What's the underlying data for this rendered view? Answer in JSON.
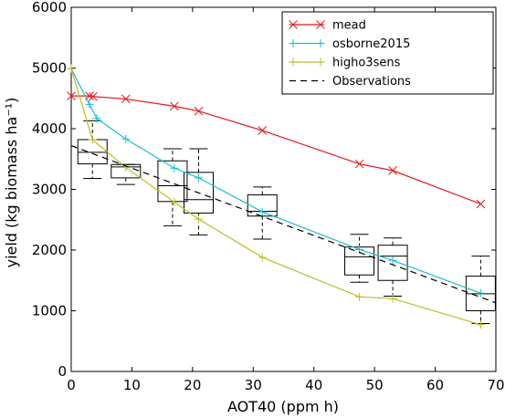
{
  "chart_data": {
    "type": "line",
    "xlabel": "AOT40 (ppm h)",
    "ylabel": "yield (kg biomass ha⁻¹)",
    "xlim": [
      0,
      70
    ],
    "ylim": [
      0,
      6000
    ],
    "xticks": [
      0,
      10,
      20,
      30,
      40,
      50,
      60,
      70
    ],
    "yticks": [
      0,
      1000,
      2000,
      3000,
      4000,
      5000,
      6000
    ],
    "grid": false,
    "legend_position": "top-right",
    "series": [
      {
        "name": "mead",
        "color": "#e41a1c",
        "marker": "x",
        "style": "solid",
        "x": [
          0,
          3,
          3.6,
          9,
          17,
          21,
          31.5,
          47.5,
          53,
          67.5
        ],
        "y": [
          4540,
          4540,
          4530,
          4490,
          4370,
          4290,
          3970,
          3420,
          3310,
          2760
        ]
      },
      {
        "name": "osborne2015",
        "color": "#17becf",
        "marker": "+",
        "style": "solid",
        "x": [
          0,
          3,
          4.2,
          9,
          17,
          21,
          31.5,
          47.5,
          53,
          67.5
        ],
        "y": [
          4990,
          4400,
          4170,
          3830,
          3350,
          3190,
          2630,
          2010,
          1830,
          1290
        ]
      },
      {
        "name": "higho3sens",
        "color": "#bcbd22",
        "marker": "+",
        "style": "solid",
        "x": [
          0,
          3.5,
          9,
          17,
          21,
          31.5,
          47.5,
          53,
          67.5
        ],
        "y": [
          4990,
          3820,
          3360,
          2790,
          2510,
          1880,
          1230,
          1200,
          770
        ]
      },
      {
        "name": "Observations",
        "color": "#000000",
        "marker": "none",
        "style": "dashed",
        "x": [
          0,
          70
        ],
        "y": [
          3720,
          1130
        ]
      }
    ],
    "boxplots": [
      {
        "x": 3.5,
        "whisker_low": 3180,
        "q1": 3420,
        "median": 3610,
        "q3": 3820,
        "whisker_high": 4130
      },
      {
        "x": 9,
        "whisker_low": 3080,
        "q1": 3190,
        "median": 3370,
        "q3": 3410,
        "whisker_high": 3410
      },
      {
        "x": 16.7,
        "whisker_low": 2400,
        "q1": 2800,
        "median": 3060,
        "q3": 3470,
        "whisker_high": 3670
      },
      {
        "x": 21,
        "whisker_low": 2250,
        "q1": 2610,
        "median": 2830,
        "q3": 3280,
        "whisker_high": 3670
      },
      {
        "x": 31.5,
        "whisker_low": 2180,
        "q1": 2560,
        "median": 2640,
        "q3": 2910,
        "whisker_high": 3040
      },
      {
        "x": 47.5,
        "whisker_low": 1470,
        "q1": 1590,
        "median": 1890,
        "q3": 2050,
        "whisker_high": 2260
      },
      {
        "x": 53,
        "whisker_low": 1240,
        "q1": 1500,
        "median": 1900,
        "q3": 2080,
        "whisker_high": 2200
      },
      {
        "x": 67.5,
        "whisker_low": 790,
        "q1": 1000,
        "median": 1280,
        "q3": 1570,
        "whisker_high": 1900
      }
    ]
  }
}
